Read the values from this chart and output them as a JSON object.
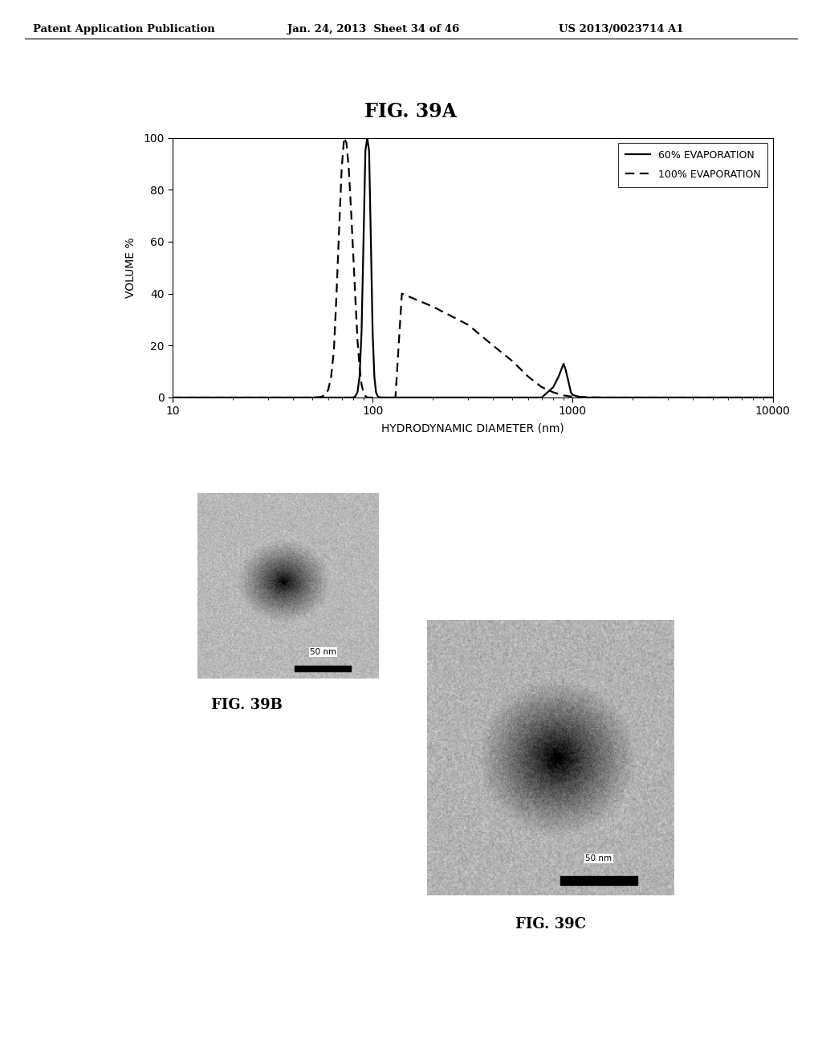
{
  "title_main": "FIG. 39A",
  "patent_header_left": "Patent Application Publication",
  "patent_header_center": "Jan. 24, 2013  Sheet 34 of 46",
  "patent_header_right": "US 2013/0023714 A1",
  "xlabel": "HYDRODYNAMIC DIAMETER (nm)",
  "ylabel": "VOLUME %",
  "ylim": [
    0,
    100
  ],
  "yticks": [
    0,
    20,
    40,
    60,
    80,
    100
  ],
  "xticks_labels": [
    "10",
    "100",
    "1000",
    "10000"
  ],
  "xlog_min": 1,
  "xlog_max": 4,
  "legend_entries": [
    "60% EVAPORATION",
    "100% EVAPORATION"
  ],
  "line_color": "#000000",
  "fig_label_39B": "FIG. 39B",
  "fig_label_39C": "FIG. 39C",
  "scalebar_text_B": "50 nm",
  "scalebar_text_C": "50 nm",
  "curve_solid_x": [
    10,
    40,
    60,
    70,
    75,
    78,
    80,
    82,
    84,
    86,
    88,
    90,
    92,
    94,
    96,
    98,
    100,
    102,
    104,
    106,
    108,
    110,
    115,
    120,
    130,
    140,
    160,
    200,
    250,
    400,
    500,
    600,
    700,
    800,
    850,
    880,
    900,
    920,
    940,
    960,
    980,
    1000,
    1050,
    1100,
    1200,
    1500,
    2000,
    5000,
    10000
  ],
  "curve_solid_y": [
    0,
    0,
    0,
    0,
    0,
    0,
    0,
    0.5,
    2,
    8,
    25,
    60,
    95,
    100,
    95,
    60,
    25,
    8,
    2,
    0.5,
    0.1,
    0,
    0,
    0,
    0,
    0,
    0,
    0,
    0,
    0,
    0,
    0,
    0,
    4,
    8,
    11,
    13,
    11,
    8,
    5,
    2,
    1,
    0.5,
    0.2,
    0,
    0,
    0,
    0,
    0
  ],
  "curve_dashed_x": [
    10,
    20,
    30,
    40,
    50,
    55,
    58,
    60,
    62,
    64,
    66,
    68,
    70,
    72,
    74,
    76,
    78,
    80,
    82,
    84,
    86,
    88,
    90,
    92,
    94,
    96,
    98,
    100,
    105,
    110,
    115,
    120,
    130,
    140,
    200,
    300,
    400,
    500,
    600,
    700,
    800,
    900,
    1000,
    1200,
    1500,
    2000,
    5000,
    10000
  ],
  "curve_dashed_y": [
    0,
    0,
    0,
    0,
    0,
    0.2,
    1,
    3,
    8,
    18,
    40,
    65,
    88,
    100,
    98,
    88,
    72,
    55,
    38,
    22,
    12,
    5,
    2,
    0.5,
    0.1,
    0,
    0,
    0,
    0,
    0,
    0,
    0,
    0,
    40,
    35,
    28,
    20,
    14,
    8,
    4,
    2,
    0.8,
    0.3,
    0.1,
    0,
    0,
    0,
    0
  ]
}
